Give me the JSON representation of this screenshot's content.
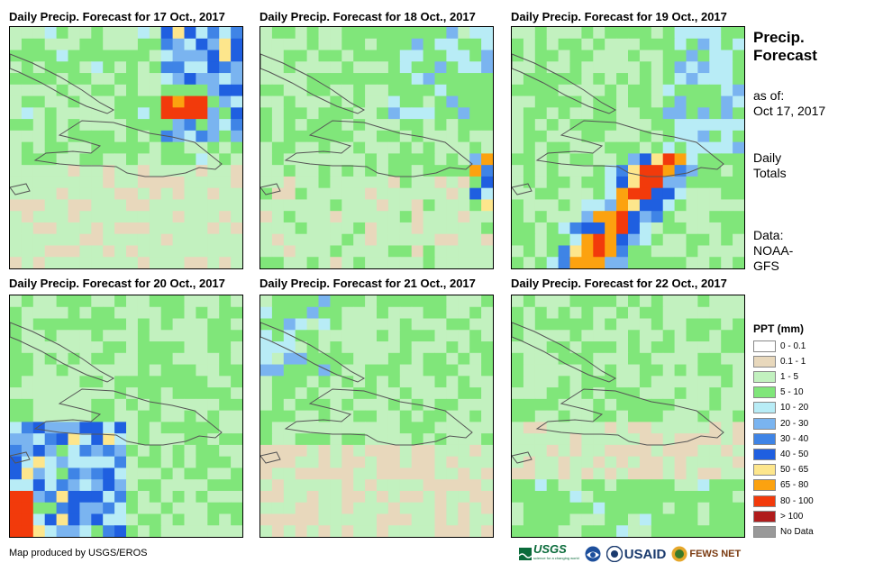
{
  "panels": [
    {
      "title": "Daily Precip. Forecast for 17 Oct., 2017"
    },
    {
      "title": "Daily Precip. Forecast for 18 Oct., 2017"
    },
    {
      "title": "Daily Precip. Forecast for 19 Oct., 2017"
    },
    {
      "title": "Daily Precip. Forecast for 20 Oct., 2017"
    },
    {
      "title": "Daily Precip. Forecast for 21 Oct., 2017"
    },
    {
      "title": "Daily Precip. Forecast for 22 Oct., 2017"
    }
  ],
  "side": {
    "title_line1": "Precip.",
    "title_line2": "Forecast",
    "asof_label": "as of:",
    "asof_date": "Oct 17, 2017",
    "totals_line1": "Daily",
    "totals_line2": "Totals",
    "data_label": "Data:",
    "data_line2": "NOAA-",
    "data_line3": "GFS"
  },
  "legend": {
    "title": "PPT (mm)",
    "items": [
      {
        "label": "0 - 0.1",
        "color": "#ffffff"
      },
      {
        "label": "0.1 - 1",
        "color": "#e8d8bc"
      },
      {
        "label": "1 - 5",
        "color": "#c2f1bf"
      },
      {
        "label": "5 - 10",
        "color": "#80e67a"
      },
      {
        "label": "10 - 20",
        "color": "#b8ecf6"
      },
      {
        "label": "20 - 30",
        "color": "#7ab4f0"
      },
      {
        "label": "30 - 40",
        "color": "#3f84e6"
      },
      {
        "label": "40 - 50",
        "color": "#1f5fe0"
      },
      {
        "label": "50 - 65",
        "color": "#fde68c"
      },
      {
        "label": "65 - 80",
        "color": "#fca20f"
      },
      {
        "label": "80 - 100",
        "color": "#f23a0b"
      },
      {
        "label": "> 100",
        "color": "#b01c1c"
      },
      {
        "label": "No Data",
        "color": "#999999"
      }
    ]
  },
  "credit": "Map produced by USGS/EROS",
  "logos": {
    "usgs": "USGS",
    "usgs_tagline": "science for a changing world",
    "usaid": "USAID",
    "fewsnet": "FEWS NET"
  }
}
